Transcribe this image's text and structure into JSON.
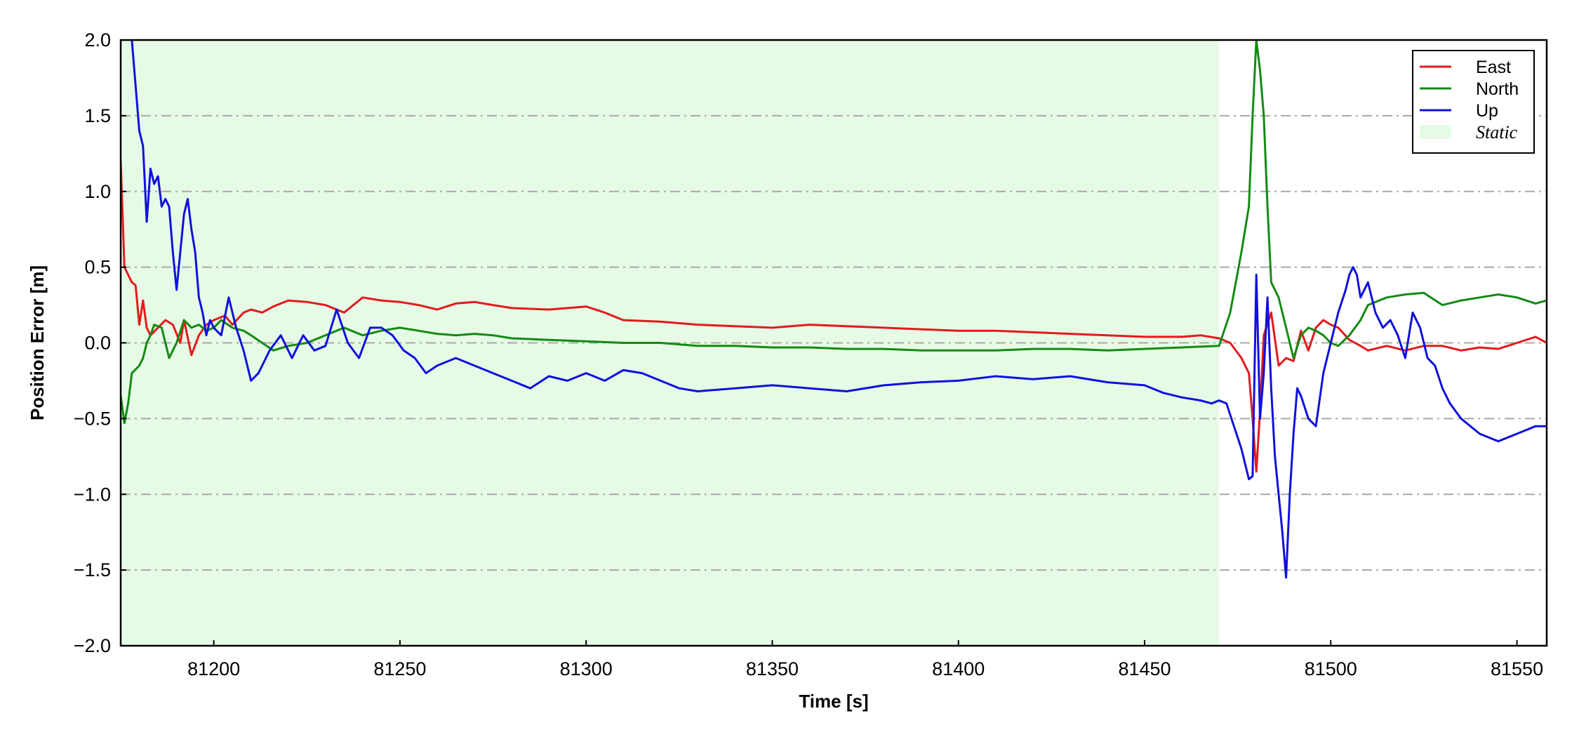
{
  "chart_data": {
    "type": "line",
    "title": "",
    "xlabel": "Time [s]",
    "ylabel": "Position Error [m]",
    "xlim": [
      81175,
      81558
    ],
    "ylim": [
      -2.0,
      2.0
    ],
    "x_ticks": [
      81200,
      81250,
      81300,
      81350,
      81400,
      81450,
      81500,
      81550
    ],
    "y_ticks": [
      -2.0,
      -1.5,
      -1.0,
      -0.5,
      0.0,
      0.5,
      1.0,
      1.5,
      2.0
    ],
    "y_tick_labels": [
      "−2.0",
      "−1.5",
      "−1.0",
      "−0.5",
      "0.0",
      "0.5",
      "1.0",
      "1.5",
      "2.0"
    ],
    "grid": "horizontal dash-dot",
    "legend_position": "top-right",
    "shaded_region": {
      "label": "Static",
      "x_start": 81175,
      "x_end": 81470,
      "color": "#e6fbe6"
    },
    "series": [
      {
        "name": "East",
        "color": "#e31a1c",
        "x": [
          81175,
          81176,
          81177,
          81178,
          81179,
          81180,
          81181,
          81182,
          81183,
          81185,
          81187,
          81189,
          81191,
          81192,
          81194,
          81196,
          81198,
          81200,
          81203,
          81205,
          81208,
          81210,
          81213,
          81216,
          81220,
          81225,
          81230,
          81235,
          81240,
          81245,
          81250,
          81255,
          81260,
          81265,
          81270,
          81275,
          81280,
          81290,
          81300,
          81305,
          81310,
          81320,
          81330,
          81340,
          81350,
          81360,
          81370,
          81380,
          81390,
          81400,
          81410,
          81420,
          81430,
          81440,
          81450,
          81460,
          81465,
          81470,
          81473,
          81476,
          81478,
          81479,
          81480,
          81481,
          81482,
          81484,
          81486,
          81488,
          81490,
          81492,
          81494,
          81496,
          81498,
          81500,
          81502,
          81505,
          81508,
          81510,
          81515,
          81520,
          81525,
          81530,
          81535,
          81540,
          81545,
          81550,
          81555,
          81558
        ],
        "y": [
          1.2,
          0.5,
          0.45,
          0.4,
          0.38,
          0.12,
          0.28,
          0.1,
          0.05,
          0.1,
          0.15,
          0.12,
          0.0,
          0.15,
          -0.08,
          0.05,
          0.12,
          0.15,
          0.18,
          0.12,
          0.2,
          0.22,
          0.2,
          0.24,
          0.28,
          0.27,
          0.25,
          0.2,
          0.3,
          0.28,
          0.27,
          0.25,
          0.22,
          0.26,
          0.27,
          0.25,
          0.23,
          0.22,
          0.24,
          0.2,
          0.15,
          0.14,
          0.12,
          0.11,
          0.1,
          0.12,
          0.11,
          0.1,
          0.09,
          0.08,
          0.08,
          0.07,
          0.06,
          0.05,
          0.04,
          0.04,
          0.05,
          0.03,
          0.0,
          -0.1,
          -0.2,
          -0.5,
          -0.85,
          -0.45,
          0.05,
          0.2,
          -0.15,
          -0.1,
          -0.12,
          0.08,
          -0.05,
          0.1,
          0.15,
          0.12,
          0.1,
          0.02,
          -0.02,
          -0.05,
          -0.02,
          -0.05,
          -0.02,
          -0.02,
          -0.05,
          -0.03,
          -0.04,
          0.0,
          0.04,
          0.0
        ]
      },
      {
        "name": "North",
        "color": "#138a13",
        "x": [
          81175,
          81176,
          81177,
          81178,
          81180,
          81181,
          81182,
          81183,
          81184,
          81186,
          81188,
          81190,
          81192,
          81194,
          81196,
          81198,
          81200,
          81202,
          81205,
          81208,
          81210,
          81213,
          81216,
          81220,
          81225,
          81230,
          81235,
          81240,
          81245,
          81250,
          81255,
          81260,
          81265,
          81270,
          81275,
          81280,
          81290,
          81300,
          81310,
          81320,
          81330,
          81340,
          81350,
          81360,
          81370,
          81380,
          81390,
          81400,
          81410,
          81420,
          81430,
          81440,
          81450,
          81460,
          81470,
          81473,
          81476,
          81478,
          81479,
          81480,
          81481,
          81482,
          81483,
          81484,
          81486,
          81488,
          81490,
          81492,
          81494,
          81496,
          81498,
          81500,
          81502,
          81505,
          81508,
          81510,
          81515,
          81520,
          81525,
          81530,
          81535,
          81540,
          81545,
          81550,
          81555,
          81558
        ],
        "y": [
          -0.35,
          -0.53,
          -0.4,
          -0.2,
          -0.15,
          -0.1,
          0.0,
          0.05,
          0.12,
          0.1,
          -0.1,
          0.0,
          0.15,
          0.1,
          0.12,
          0.08,
          0.1,
          0.15,
          0.1,
          0.08,
          0.05,
          0.0,
          -0.05,
          -0.02,
          0.0,
          0.05,
          0.1,
          0.05,
          0.08,
          0.1,
          0.08,
          0.06,
          0.05,
          0.06,
          0.05,
          0.03,
          0.02,
          0.01,
          0.0,
          0.0,
          -0.02,
          -0.02,
          -0.03,
          -0.03,
          -0.04,
          -0.04,
          -0.05,
          -0.05,
          -0.05,
          -0.04,
          -0.04,
          -0.05,
          -0.04,
          -0.03,
          -0.02,
          0.2,
          0.6,
          0.9,
          1.5,
          2.0,
          1.8,
          1.5,
          0.9,
          0.4,
          0.3,
          0.1,
          -0.1,
          0.05,
          0.1,
          0.08,
          0.05,
          0.0,
          -0.02,
          0.05,
          0.15,
          0.25,
          0.3,
          0.32,
          0.33,
          0.25,
          0.28,
          0.3,
          0.32,
          0.3,
          0.26,
          0.28
        ]
      },
      {
        "name": "Up",
        "color": "#1010dd",
        "x": [
          81178,
          81179,
          81180,
          81181,
          81182,
          81183,
          81184,
          81185,
          81186,
          81187,
          81188,
          81189,
          81190,
          81191,
          81192,
          81193,
          81194,
          81195,
          81196,
          81197,
          81198,
          81199,
          81200,
          81202,
          81204,
          81206,
          81208,
          81210,
          81212,
          81215,
          81218,
          81221,
          81224,
          81227,
          81230,
          81233,
          81236,
          81239,
          81242,
          81245,
          81248,
          81251,
          81254,
          81257,
          81260,
          81265,
          81270,
          81275,
          81280,
          81285,
          81290,
          81295,
          81300,
          81305,
          81310,
          81315,
          81320,
          81325,
          81330,
          81340,
          81350,
          81360,
          81370,
          81380,
          81390,
          81400,
          81410,
          81420,
          81430,
          81440,
          81450,
          81455,
          81460,
          81465,
          81468,
          81470,
          81472,
          81474,
          81476,
          81477,
          81478,
          81479,
          81480,
          81481,
          81482,
          81483,
          81484,
          81485,
          81486,
          81487,
          81488,
          81489,
          81490,
          81491,
          81492,
          81494,
          81496,
          81498,
          81500,
          81502,
          81504,
          81505,
          81506,
          81507,
          81508,
          81510,
          81512,
          81514,
          81516,
          81518,
          81520,
          81522,
          81524,
          81526,
          81528,
          81530,
          81532,
          81535,
          81540,
          81545,
          81550,
          81555,
          81558
        ],
        "y": [
          2.0,
          1.7,
          1.4,
          1.3,
          0.8,
          1.15,
          1.05,
          1.1,
          0.9,
          0.95,
          0.9,
          0.6,
          0.35,
          0.6,
          0.85,
          0.95,
          0.75,
          0.6,
          0.3,
          0.2,
          0.05,
          0.15,
          0.1,
          0.05,
          0.3,
          0.1,
          -0.05,
          -0.25,
          -0.2,
          -0.05,
          0.05,
          -0.1,
          0.05,
          -0.05,
          -0.02,
          0.22,
          0.0,
          -0.1,
          0.1,
          0.1,
          0.05,
          -0.05,
          -0.1,
          -0.2,
          -0.15,
          -0.1,
          -0.15,
          -0.2,
          -0.25,
          -0.3,
          -0.22,
          -0.25,
          -0.2,
          -0.25,
          -0.18,
          -0.2,
          -0.25,
          -0.3,
          -0.32,
          -0.3,
          -0.28,
          -0.3,
          -0.32,
          -0.28,
          -0.26,
          -0.25,
          -0.22,
          -0.24,
          -0.22,
          -0.26,
          -0.28,
          -0.33,
          -0.36,
          -0.38,
          -0.4,
          -0.38,
          -0.4,
          -0.55,
          -0.7,
          -0.8,
          -0.9,
          -0.88,
          0.45,
          -0.5,
          -0.2,
          0.3,
          -0.3,
          -0.75,
          -1.0,
          -1.25,
          -1.55,
          -1.0,
          -0.6,
          -0.3,
          -0.35,
          -0.5,
          -0.55,
          -0.2,
          0.0,
          0.2,
          0.35,
          0.45,
          0.5,
          0.45,
          0.3,
          0.4,
          0.2,
          0.1,
          0.15,
          0.05,
          -0.1,
          0.2,
          0.1,
          -0.1,
          -0.15,
          -0.3,
          -0.4,
          -0.5,
          -0.6,
          -0.65,
          -0.6,
          -0.55,
          -0.55
        ]
      }
    ]
  }
}
